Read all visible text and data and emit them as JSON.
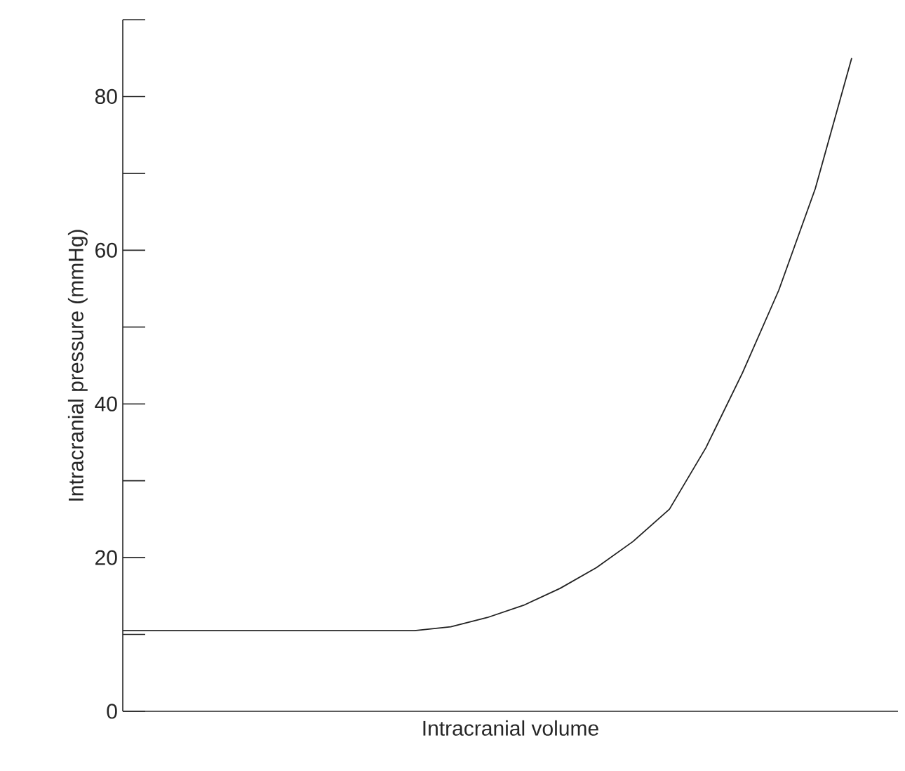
{
  "chart_data": {
    "type": "line",
    "xlabel": "Intracranial volume",
    "ylabel": "Intracranial pressure (mmHg)",
    "categories": [
      null,
      null,
      null,
      null,
      null,
      null,
      null,
      null,
      null,
      null,
      null,
      null,
      null,
      null,
      null,
      null,
      null,
      null,
      null,
      null,
      null
    ],
    "series": [
      {
        "color": "#222222",
        "values": [
          10.5,
          10.5,
          10.5,
          10.5,
          10.5,
          10.5,
          10.5,
          10.5,
          10.5,
          11.0,
          12.2,
          13.8,
          16.0,
          18.7,
          22.1,
          26.3,
          34.3,
          44.0,
          54.8,
          68.0,
          85.0
        ]
      }
    ],
    "ylim": [
      0,
      90
    ],
    "yticks": [
      0,
      {
        "value": 10,
        "label": null
      },
      20,
      {
        "value": 30,
        "label": null
      },
      40,
      {
        "value": 50,
        "label": null
      },
      60,
      {
        "value": 70,
        "label": null
      },
      80,
      {
        "value": 90,
        "label": null
      }
    ],
    "tick_labels": "y"
  }
}
